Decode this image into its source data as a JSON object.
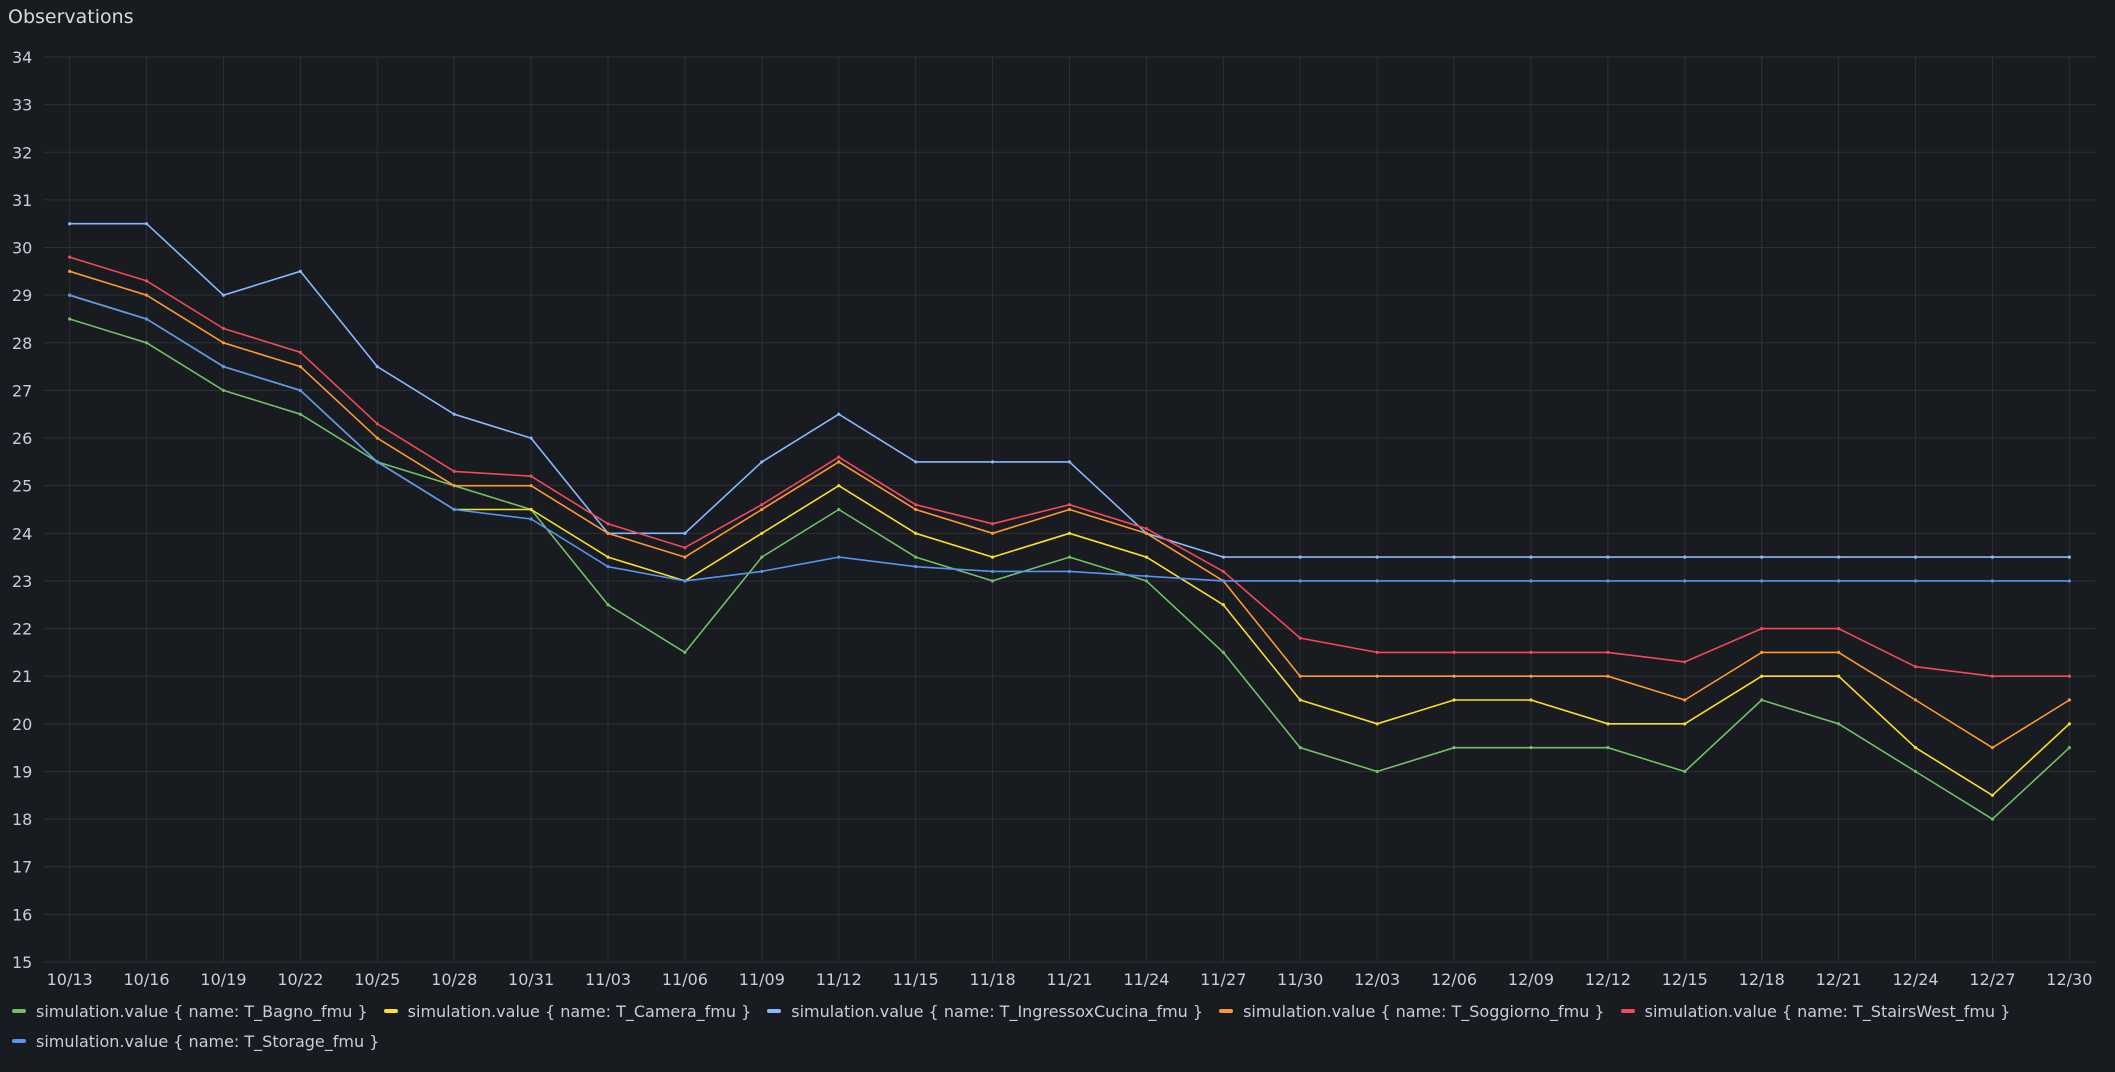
{
  "panel": {
    "title": "Observations"
  },
  "chart_data": {
    "type": "line",
    "title": "Observations",
    "xlabel": "",
    "ylabel": "",
    "ylim": [
      15,
      34
    ],
    "y_ticks": [
      15,
      16,
      17,
      18,
      19,
      20,
      21,
      22,
      23,
      24,
      25,
      26,
      27,
      28,
      29,
      30,
      31,
      32,
      33,
      34
    ],
    "x_start": "10/12",
    "x_end": "12/31",
    "x_ticks": [
      "10/13",
      "10/16",
      "10/19",
      "10/22",
      "10/25",
      "10/28",
      "10/31",
      "11/03",
      "11/06",
      "11/09",
      "11/12",
      "11/15",
      "11/18",
      "11/21",
      "11/24",
      "11/27",
      "11/30",
      "12/03",
      "12/06",
      "12/09",
      "12/12",
      "12/15",
      "12/18",
      "12/21",
      "12/24",
      "12/27",
      "12/30"
    ],
    "grid": true,
    "legend_position": "bottom",
    "x": [
      "10/13",
      "10/16",
      "10/19",
      "10/22",
      "10/25",
      "10/28",
      "10/31",
      "11/03",
      "11/06",
      "11/09",
      "11/12",
      "11/15",
      "11/18",
      "11/21",
      "11/24",
      "11/27",
      "11/30",
      "12/03",
      "12/06",
      "12/09",
      "12/12",
      "12/15",
      "12/18",
      "12/21",
      "12/24",
      "12/27",
      "12/30"
    ],
    "series": [
      {
        "name": "simulation.value { name: T_Bagno_fmu }",
        "color": "#73bf69",
        "values": [
          28.5,
          28,
          27,
          26.5,
          25.5,
          25,
          24.5,
          22.5,
          21.5,
          23.5,
          24.5,
          23.5,
          23,
          23.5,
          23,
          21.5,
          19.5,
          19,
          19.5,
          19.5,
          19.5,
          19,
          20.5,
          20,
          19,
          18,
          19.5
        ]
      },
      {
        "name": "simulation.value { name: T_Camera_fmu }",
        "color": "#fade2a",
        "values": [
          29,
          28.5,
          27.5,
          27,
          25.5,
          24.5,
          24.5,
          23.5,
          23,
          24,
          25,
          24,
          23.5,
          24,
          23.5,
          22.5,
          20.5,
          20,
          20.5,
          20.5,
          20,
          20,
          21,
          21,
          19.5,
          18.5,
          20
        ]
      },
      {
        "name": "simulation.value { name: T_IngressoxCucina_fmu }",
        "color": "#8ab8ff",
        "values": [
          30.5,
          30.5,
          29,
          29.5,
          27.5,
          26.5,
          26,
          24,
          24,
          25.5,
          26.5,
          25.5,
          25.5,
          25.5,
          24,
          23.5,
          23.5,
          23.5,
          23.5,
          23.5,
          23.5,
          23.5,
          23.5,
          23.5,
          23.5,
          23.5,
          23.5
        ]
      },
      {
        "name": "simulation.value { name: T_Soggiorno_fmu }",
        "color": "#ff9830",
        "values": [
          29.5,
          29,
          28,
          27.5,
          26,
          25,
          25,
          24,
          23.5,
          24.5,
          25.5,
          24.5,
          24,
          24.5,
          24,
          23,
          21,
          21,
          21,
          21,
          21,
          20.5,
          21.5,
          21.5,
          20.5,
          19.5,
          20.5
        ]
      },
      {
        "name": "simulation.value { name: T_StairsWest_fmu }",
        "color": "#f2495c",
        "values": [
          29.8,
          29.3,
          28.3,
          27.8,
          26.3,
          25.3,
          25.2,
          24.2,
          23.7,
          24.6,
          25.6,
          24.6,
          24.2,
          24.6,
          24.1,
          23.2,
          21.8,
          21.5,
          21.5,
          21.5,
          21.5,
          21.3,
          22,
          22,
          21.2,
          21,
          21
        ]
      },
      {
        "name": "simulation.value { name: T_Storage_fmu }",
        "color": "#5794f2",
        "values": [
          29,
          28.5,
          27.5,
          27,
          25.5,
          24.5,
          24.3,
          23.3,
          23,
          23.2,
          23.5,
          23.3,
          23.2,
          23.2,
          23.1,
          23,
          23,
          23,
          23,
          23,
          23,
          23,
          23,
          23,
          23,
          23,
          23
        ]
      }
    ]
  }
}
